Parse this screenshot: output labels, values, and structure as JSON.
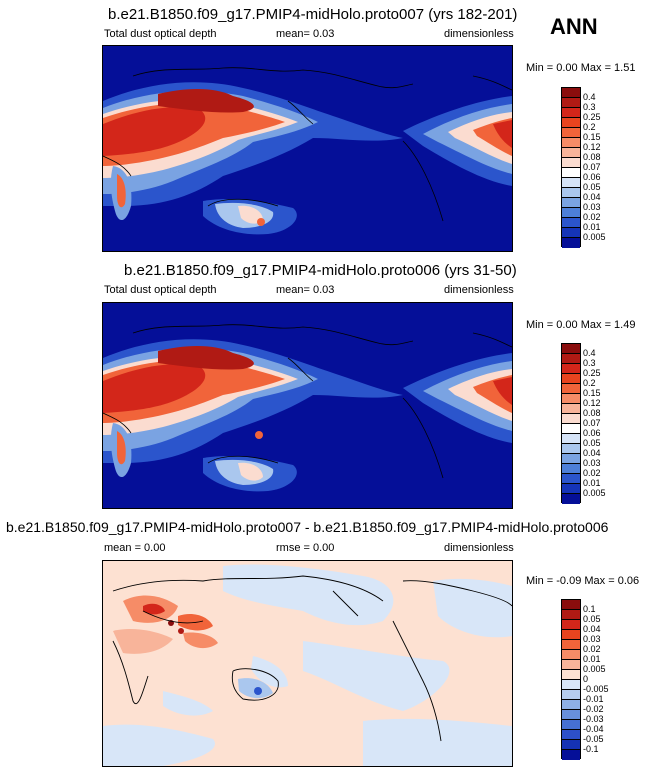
{
  "season": "ANN",
  "panels": [
    {
      "title": "b.e21.B1850.f09_g17.PMIP4-midHolo.proto007 (yrs 182-201)",
      "left": "Total dust optical depth",
      "center": "mean=  0.03",
      "right": "dimensionless",
      "minmax": "Min =  0.00 Max =  1.51",
      "min": 0.0,
      "max": 1.51,
      "mean": 0.03
    },
    {
      "title": "b.e21.B1850.f09_g17.PMIP4-midHolo.proto006 (yrs 31-50)",
      "left": "Total dust optical depth",
      "center": "mean=  0.03",
      "right": "dimensionless",
      "minmax": "Min =  0.00 Max =  1.49",
      "min": 0.0,
      "max": 1.49,
      "mean": 0.03
    },
    {
      "title": "b.e21.B1850.f09_g17.PMIP4-midHolo.proto007 - b.e21.B1850.f09_g17.PMIP4-midHolo.proto006",
      "left": "mean =   0.00",
      "center": "rmse =   0.00",
      "right": "dimensionless",
      "minmax": "Min =  -0.09 Max =  0.06",
      "min": -0.09,
      "max": 0.06,
      "mean": 0.0,
      "rmse": 0.0
    }
  ],
  "colorbars": {
    "field": {
      "labels": [
        "0.4",
        "0.3",
        "0.25",
        "0.2",
        "0.15",
        "0.12",
        "0.08",
        "0.07",
        "0.06",
        "0.05",
        "0.04",
        "0.03",
        "0.02",
        "0.01",
        "0.005"
      ],
      "colors": [
        "#8a0d0d",
        "#b01a14",
        "#d3261a",
        "#e8441f",
        "#f1643a",
        "#f68c67",
        "#f8b49a",
        "#fbdcd0",
        "#ffffff",
        "#d6e4f8",
        "#aac7ee",
        "#7aa3e2",
        "#4d7fd8",
        "#2b55cc",
        "#1534b8",
        "#050f98"
      ]
    },
    "diff": {
      "labels": [
        "0.1",
        "0.05",
        "0.04",
        "0.03",
        "0.02",
        "0.01",
        "0.005",
        "0",
        "-0.005",
        "-0.01",
        "-0.02",
        "-0.03",
        "-0.04",
        "-0.05",
        "-0.1"
      ],
      "colors": [
        "#8a0d0d",
        "#b01a14",
        "#d3261a",
        "#e8441f",
        "#f1643a",
        "#f68c67",
        "#f8b49a",
        "#fde1d2",
        "#d8e6f8",
        "#b6cdef",
        "#8eb0e6",
        "#6890dc",
        "#4670d2",
        "#2d50c8",
        "#1532b4",
        "#050f98"
      ]
    }
  },
  "map_colors": {
    "ocean_field": "#050f98",
    "ocean_diff_pos": "#fde1d2",
    "ocean_diff_neg": "#d8e6f8"
  }
}
